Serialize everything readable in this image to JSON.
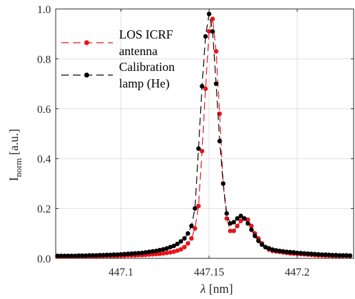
{
  "chart_data": {
    "type": "line",
    "xlabel_symbol": "λ",
    "xlabel_unit": " [nm]",
    "ylabel_main": "I",
    "ylabel_sub": "norm",
    "ylabel_unit": " [a.u.]",
    "xlim": [
      447.063,
      447.232
    ],
    "ylim": [
      0,
      1.0
    ],
    "x_ticks": [
      447.1,
      447.15,
      447.2
    ],
    "x_tick_labels": [
      "447.1",
      "447.15",
      "447.2"
    ],
    "y_ticks": [
      0,
      0.2,
      0.4,
      0.6,
      0.8,
      1.0
    ],
    "y_tick_labels": [
      "0.0",
      "0.2",
      "0.4",
      "0.6",
      "0.8",
      "1.0"
    ],
    "grid": true,
    "legend_position": "top-left",
    "series": [
      {
        "name": "LOS ICRF antenna",
        "legend_lines": [
          "LOS ICRF",
          "antenna"
        ],
        "color": "#e8141b",
        "x": [
          447.064,
          447.066,
          447.068,
          447.07,
          447.072,
          447.074,
          447.076,
          447.078,
          447.08,
          447.082,
          447.084,
          447.086,
          447.088,
          447.09,
          447.092,
          447.094,
          447.096,
          447.098,
          447.1,
          447.102,
          447.104,
          447.106,
          447.108,
          447.11,
          447.112,
          447.114,
          447.116,
          447.118,
          447.12,
          447.122,
          447.124,
          447.126,
          447.128,
          447.13,
          447.132,
          447.134,
          447.136,
          447.138,
          447.14,
          447.142,
          447.144,
          447.146,
          447.148,
          447.15,
          447.152,
          447.154,
          447.156,
          447.158,
          447.16,
          447.162,
          447.164,
          447.166,
          447.168,
          447.17,
          447.172,
          447.174,
          447.176,
          447.178,
          447.18,
          447.182,
          447.184,
          447.186,
          447.188,
          447.19,
          447.192,
          447.194,
          447.196,
          447.198,
          447.2,
          447.202,
          447.204,
          447.206,
          447.208,
          447.21,
          447.212,
          447.214,
          447.216,
          447.218,
          447.22,
          447.222,
          447.224,
          447.226,
          447.228,
          447.23
        ],
        "y": [
          0.008,
          0.008,
          0.008,
          0.008,
          0.008,
          0.008,
          0.009,
          0.009,
          0.009,
          0.009,
          0.009,
          0.009,
          0.009,
          0.01,
          0.01,
          0.01,
          0.01,
          0.01,
          0.011,
          0.011,
          0.012,
          0.012,
          0.012,
          0.013,
          0.013,
          0.014,
          0.015,
          0.016,
          0.017,
          0.018,
          0.02,
          0.022,
          0.024,
          0.027,
          0.031,
          0.036,
          0.045,
          0.06,
          0.08,
          0.12,
          0.21,
          0.43,
          0.68,
          0.91,
          0.96,
          0.83,
          0.58,
          0.3,
          0.16,
          0.11,
          0.11,
          0.13,
          0.15,
          0.16,
          0.155,
          0.13,
          0.1,
          0.08,
          0.06,
          0.045,
          0.035,
          0.03,
          0.028,
          0.026,
          0.024,
          0.022,
          0.02,
          0.019,
          0.018,
          0.017,
          0.016,
          0.015,
          0.014,
          0.013,
          0.012,
          0.012,
          0.011,
          0.011,
          0.01,
          0.01,
          0.01,
          0.01,
          0.01,
          0.01
        ]
      },
      {
        "name": "Calibration lamp (He)",
        "legend_lines": [
          "Calibration",
          "lamp (He)"
        ],
        "color": "#000000",
        "x": [
          447.064,
          447.066,
          447.068,
          447.07,
          447.072,
          447.074,
          447.076,
          447.078,
          447.08,
          447.082,
          447.084,
          447.086,
          447.088,
          447.09,
          447.092,
          447.094,
          447.096,
          447.098,
          447.1,
          447.102,
          447.104,
          447.106,
          447.108,
          447.11,
          447.112,
          447.114,
          447.116,
          447.118,
          447.12,
          447.122,
          447.124,
          447.126,
          447.128,
          447.13,
          447.132,
          447.134,
          447.136,
          447.138,
          447.14,
          447.142,
          447.144,
          447.146,
          447.148,
          447.15,
          447.152,
          447.154,
          447.156,
          447.158,
          447.16,
          447.162,
          447.164,
          447.166,
          447.168,
          447.17,
          447.172,
          447.174,
          447.176,
          447.178,
          447.18,
          447.182,
          447.184,
          447.186,
          447.188,
          447.19,
          447.192,
          447.194,
          447.196,
          447.198,
          447.2,
          447.202,
          447.204,
          447.206,
          447.208,
          447.21,
          447.212,
          447.214,
          447.216,
          447.218,
          447.22,
          447.222,
          447.224,
          447.226,
          447.228,
          447.23
        ],
        "y": [
          0.01,
          0.01,
          0.01,
          0.01,
          0.01,
          0.01,
          0.011,
          0.011,
          0.011,
          0.012,
          0.012,
          0.012,
          0.013,
          0.013,
          0.014,
          0.014,
          0.015,
          0.015,
          0.016,
          0.017,
          0.018,
          0.019,
          0.02,
          0.021,
          0.022,
          0.024,
          0.026,
          0.028,
          0.03,
          0.033,
          0.036,
          0.04,
          0.045,
          0.05,
          0.058,
          0.068,
          0.08,
          0.1,
          0.13,
          0.2,
          0.44,
          0.69,
          0.89,
          0.98,
          0.91,
          0.7,
          0.47,
          0.3,
          0.18,
          0.14,
          0.145,
          0.16,
          0.17,
          0.16,
          0.14,
          0.115,
          0.09,
          0.07,
          0.055,
          0.045,
          0.04,
          0.035,
          0.032,
          0.03,
          0.028,
          0.026,
          0.025,
          0.024,
          0.022,
          0.021,
          0.02,
          0.019,
          0.018,
          0.017,
          0.016,
          0.015,
          0.015,
          0.014,
          0.013,
          0.013,
          0.012,
          0.012,
          0.012,
          0.011
        ]
      }
    ]
  }
}
